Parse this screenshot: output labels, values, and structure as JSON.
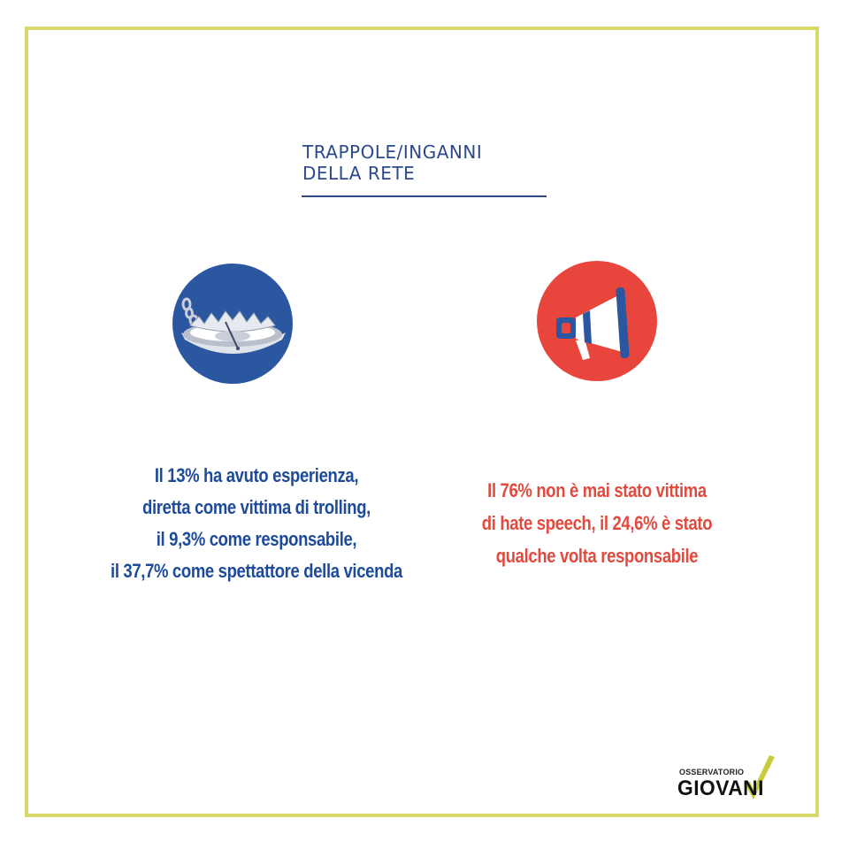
{
  "title": {
    "line1": "TRAPPOLE/INGANNI",
    "line2": "DELLA RETE"
  },
  "left_panel": {
    "icon": "bear-trap-icon",
    "lines": [
      "Il 13% ha avuto esperienza,",
      "diretta come vittima di trolling,",
      "il 9,3% come responsabile,",
      "il 37,7% come spettattore della vicenda"
    ]
  },
  "right_panel": {
    "icon": "megaphone-icon",
    "lines": [
      "Il 76% non è mai stato vittima",
      "di hate speech, il 24,6% è stato",
      "qualche volta responsabile"
    ]
  },
  "logo": {
    "small": "OSSERVATORIO",
    "big": "GIOVANI"
  },
  "colors": {
    "frame": "#d6d96a",
    "blue": "#2b56a0",
    "red": "#e8463c",
    "title": "#2b4a8b"
  }
}
